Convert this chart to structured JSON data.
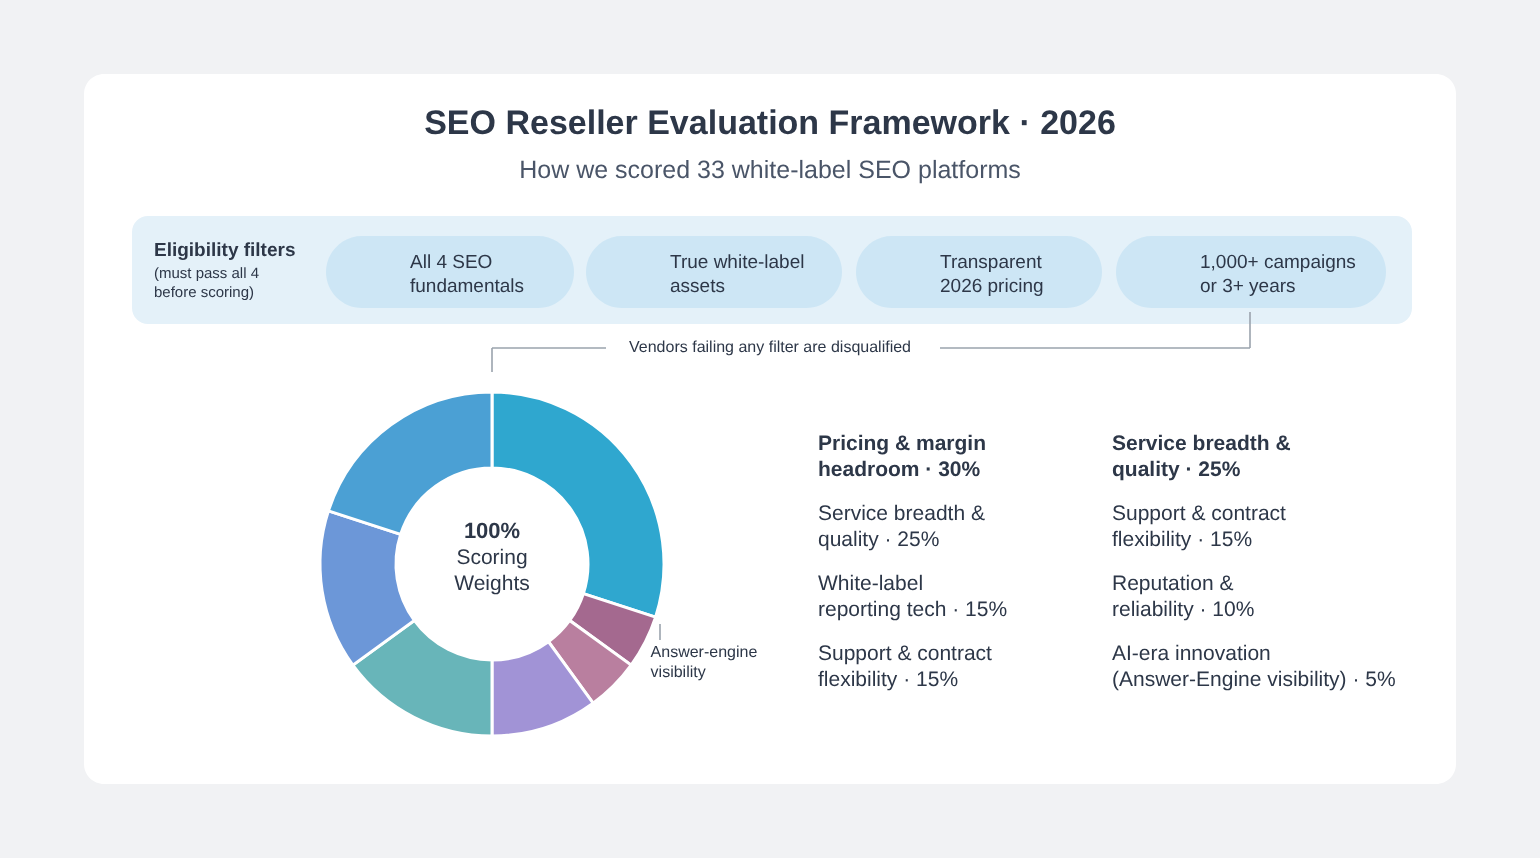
{
  "chart_data": {
    "type": "donut",
    "title": "SEO Reseller Evaluation Framework · 2026",
    "subtitle": "How we scored 33 white-label SEO platforms",
    "categories": [
      null,
      "Answer-engine\nvisibility",
      null,
      null,
      null,
      null,
      null
    ],
    "values": [
      30,
      5,
      5,
      10,
      15,
      15,
      20
    ],
    "colors": [
      "#2fa7cf",
      "#a4698f",
      "#b97f9f",
      "#a193d6",
      "#68b5b9",
      "#6c97d8",
      "#4ba0d4"
    ],
    "annotations": [
      "100%",
      "Scoring\nWeights",
      "Eligibility filters",
      "(must pass all 4\nbefore scoring)",
      "All 4 SEO\nfundamentals",
      "True white-label\nassets",
      "Transparent\n2026 pricing",
      "1,000+ campaigns\nor 3+ years",
      "Vendors failing any filter are disqualified",
      "Pricing & margin\nheadroom · 30%",
      "Service breadth &\nquality · 25%",
      "Service breadth &\nquality · 25%",
      "Support & contract\nflexibility · 15%",
      "White-label\nreporting tech · 15%",
      "Reputation &\nreliability · 10%",
      "Support & contract\nflexibility · 15%",
      "AI-era innovation\n(Answer-Engine visibility) · 5%"
    ]
  }
}
